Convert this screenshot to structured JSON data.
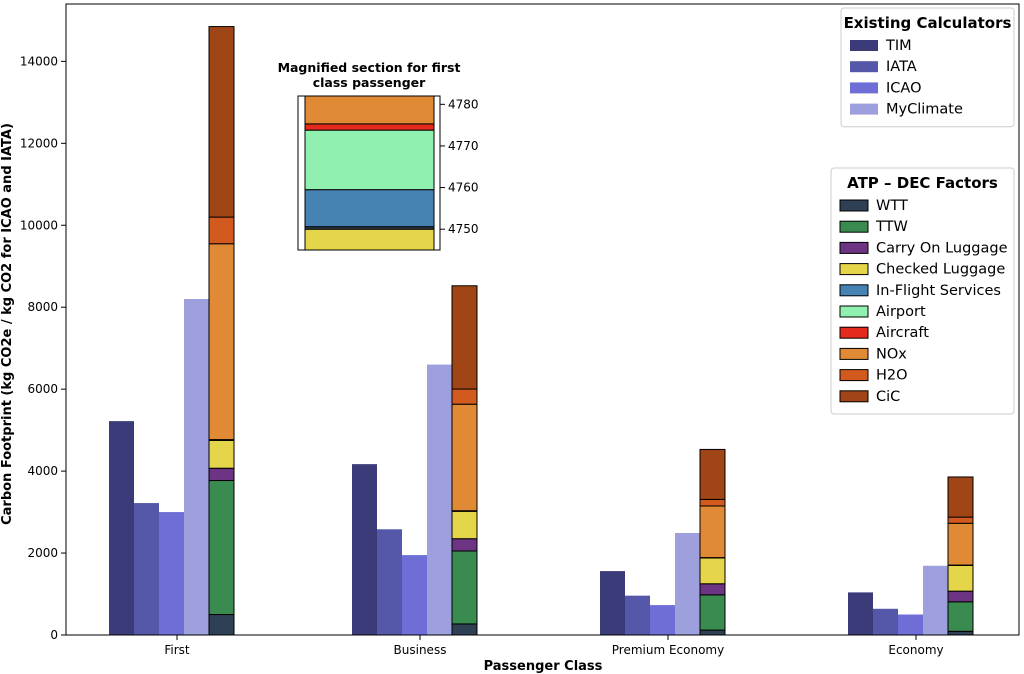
{
  "chart_data": {
    "type": "bar",
    "xlabel": "Passenger Class",
    "ylabel": "Carbon Footprint (kg CO2e / kg CO2 for ICAO and IATA)",
    "ylim": [
      0,
      15400
    ],
    "yticks": [
      0,
      2000,
      4000,
      6000,
      8000,
      10000,
      12000,
      14000
    ],
    "categories": [
      "First",
      "Business",
      "Premium Economy",
      "Economy"
    ],
    "calculators": {
      "legend_title": "Existing Calculators",
      "legend_position": "upper right",
      "series": [
        {
          "name": "TIM",
          "color": "#3b3b7a",
          "values": [
            5220,
            4170,
            1560,
            1040
          ]
        },
        {
          "name": "IATA",
          "color": "#5558a8",
          "values": [
            3220,
            2580,
            960,
            640
          ]
        },
        {
          "name": "ICAO",
          "color": "#6e6ed6",
          "values": [
            3000,
            1950,
            730,
            500
          ]
        },
        {
          "name": "MyClimate",
          "color": "#9ea0de",
          "values": [
            8200,
            6600,
            2490,
            1690
          ]
        }
      ]
    },
    "atp_dec": {
      "legend_title": "ATP – DEC Factors",
      "legend_position": "center right",
      "series": [
        {
          "name": "WTT",
          "color": "#2e4053",
          "values": [
            500,
            270,
            120,
            90
          ]
        },
        {
          "name": "TTW",
          "color": "#3a8b4f",
          "values": [
            3270,
            1780,
            860,
            720
          ]
        },
        {
          "name": "Carry On Luggage",
          "color": "#6c3483",
          "values": [
            300,
            300,
            270,
            260
          ]
        },
        {
          "name": "Checked Luggage",
          "color": "#e5d54a",
          "values": [
            680,
            670,
            630,
            630
          ]
        },
        {
          "name": "In-Flight Services",
          "color": "#4682b4",
          "values": [
            5,
            3,
            2,
            1
          ]
        },
        {
          "name": "Airport",
          "color": "#8ff0b0",
          "values": [
            12,
            8,
            5,
            4
          ]
        },
        {
          "name": "Aircraft",
          "color": "#e42a1c",
          "values": [
            2,
            2,
            2,
            2
          ]
        },
        {
          "name": "NOx",
          "color": "#e08a36",
          "values": [
            4780,
            2600,
            1260,
            1020
          ]
        },
        {
          "name": "H2O",
          "color": "#d35a1e",
          "values": [
            650,
            370,
            160,
            150
          ]
        },
        {
          "name": "CiC",
          "color": "#a04515",
          "values": [
            4650,
            2520,
            1220,
            980
          ]
        }
      ]
    },
    "inset": {
      "title": "Magnified section for first class passenger",
      "title_lines": [
        "Magnified section for first",
        "class passenger"
      ],
      "ylim": [
        4745,
        4782
      ],
      "yticks": [
        4750,
        4760,
        4770,
        4780
      ],
      "segments": [
        {
          "name": "Checked Luggage",
          "from": 4745,
          "to": 4750.0
        },
        {
          "name": "WTT",
          "from": 4750.0,
          "to": 4750.6
        },
        {
          "name": "In-Flight Services",
          "from": 4750.6,
          "to": 4759.5
        },
        {
          "name": "Airport",
          "from": 4759.5,
          "to": 4773.8
        },
        {
          "name": "Aircraft",
          "from": 4773.8,
          "to": 4775.3
        },
        {
          "name": "NOx",
          "from": 4775.3,
          "to": 4782
        }
      ]
    }
  }
}
